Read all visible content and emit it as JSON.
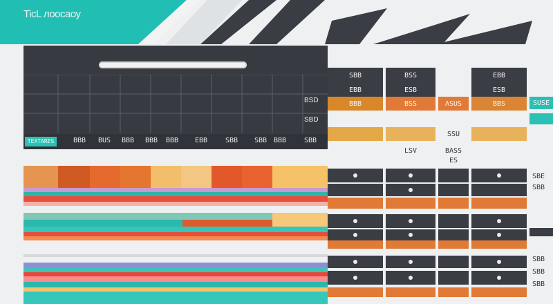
{
  "app": {
    "title": "TiсL лоосаоу"
  },
  "header_labels": [
    {
      "text": "SBB",
      "col": 0
    },
    {
      "text": "BSS",
      "col": 1
    },
    {
      "text": "EBB",
      "col": 2
    }
  ],
  "sub_labels": [
    {
      "text": "EBB",
      "col": 0
    },
    {
      "text": "ESB",
      "col": 1
    },
    {
      "text": "ESB",
      "col": 2
    }
  ],
  "side_labels": [
    {
      "text": "BSD",
      "row": 0
    },
    {
      "text": "SBD",
      "row": 1
    }
  ],
  "table_header": {
    "tag": "TEXTARES",
    "cells": [
      "BBB",
      "BUS",
      "BBB",
      "BBB",
      "BBB",
      "EBB",
      "SBB",
      "SBB",
      "BBB",
      "SBB"
    ]
  },
  "orange_row": {
    "cells": [
      "BBB",
      "BSS",
      "ASUS",
      "BBS"
    ],
    "right_tag": "SUSE"
  },
  "mid_rows": [
    {
      "cells": [
        "",
        "",
        "SSU",
        ""
      ]
    },
    {
      "cells": [
        "",
        "LSV",
        "BASS",
        ""
      ]
    },
    {
      "cells": [
        "",
        "",
        "ES",
        ""
      ]
    }
  ],
  "right_side_labels": [
    {
      "text": "SBE"
    },
    {
      "text": "SBB"
    },
    {
      "text": "SBB"
    },
    {
      "text": "SBB"
    },
    {
      "text": "SBB"
    }
  ],
  "colors": {
    "teal": "#21bfb3",
    "dark": "#3a3d43",
    "orange": "#e07a36",
    "amber": "#e3a949",
    "gold": "#d8882b"
  }
}
